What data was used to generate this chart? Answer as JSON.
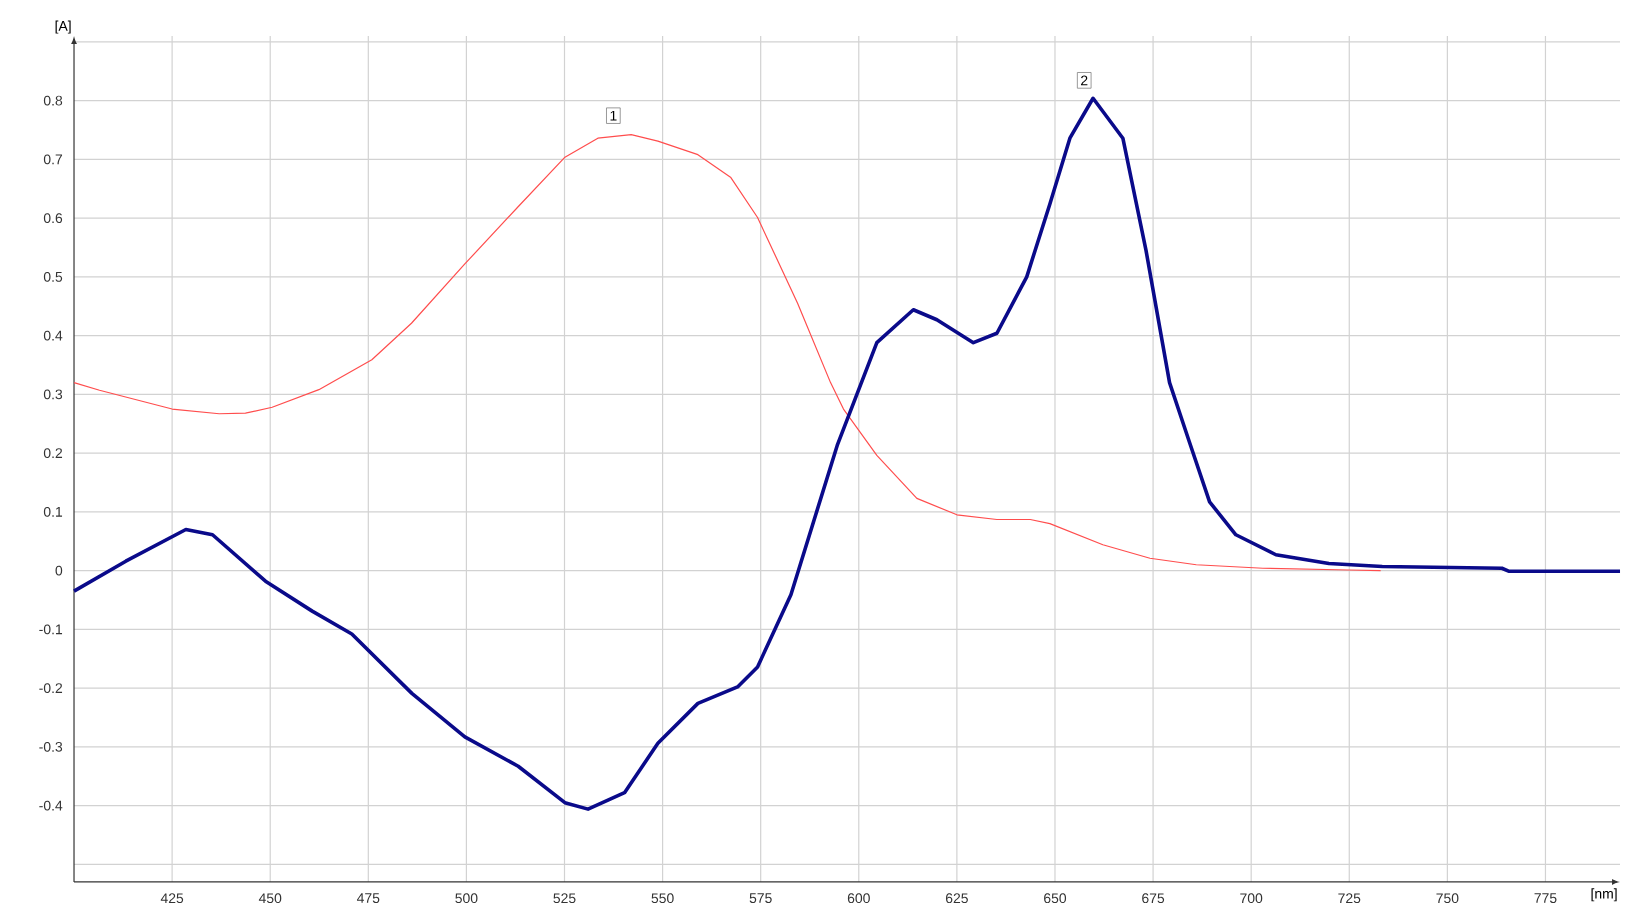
{
  "chart_data": {
    "type": "line",
    "xlabel": "[nm]",
    "ylabel": "[A]",
    "xlim": [
      400,
      794
    ],
    "ylim": [
      -0.53,
      0.91
    ],
    "xticks": [
      425,
      450,
      475,
      500,
      525,
      550,
      575,
      600,
      625,
      650,
      675,
      700,
      725,
      750,
      775
    ],
    "yticks": [
      {
        "value": -0.5,
        "label": null
      },
      -0.4,
      -0.3,
      -0.2,
      -0.1,
      0,
      0.1,
      0.2,
      0.3,
      0.4,
      0.5,
      0.6,
      0.7,
      0.8,
      {
        "value": 0.9,
        "label": null
      }
    ],
    "grid": true,
    "marker": "none",
    "line_style": "solid",
    "annotations": [
      {
        "text": "1",
        "x": 540,
        "y": 0.74
      },
      {
        "text": "2",
        "x": 660,
        "y": 0.8
      }
    ],
    "series": [
      {
        "color": "#ff4d4d",
        "x": [
          400,
          406.5,
          425,
          437,
          443.7,
          450.5,
          462.4,
          475.9,
          486,
          499.6,
          513,
          525,
          533.5,
          542,
          548.8,
          559,
          567.4,
          574.2,
          584.4,
          592.8,
          596.1,
          604.6,
          614.8,
          625,
          635.2,
          643.7,
          648.7,
          662.2,
          674.2,
          686,
          703,
          725,
          733
        ],
        "values": [
          0.32,
          0.307,
          0.275,
          0.267,
          0.268,
          0.278,
          0.308,
          0.359,
          0.421,
          0.522,
          0.618,
          0.703,
          0.736,
          0.742,
          0.731,
          0.708,
          0.669,
          0.601,
          0.455,
          0.32,
          0.275,
          0.196,
          0.123,
          0.095,
          0.087,
          0.087,
          0.08,
          0.044,
          0.021,
          0.01,
          0.004,
          0.001,
          0
        ]
      },
      {
        "color": "#0a0a8a",
        "x": [
          400,
          413.2,
          428.5,
          435.3,
          448.8,
          460.7,
          470.8,
          486.1,
          499.6,
          513.2,
          525.1,
          531,
          540.3,
          548.8,
          559,
          569.1,
          574.2,
          582.7,
          594.5,
          604.6,
          613.9,
          619.9,
          629.2,
          635.2,
          642.8,
          648.7,
          653.8,
          659.7,
          667.3,
          673.2,
          679.2,
          684.3,
          689.4,
          696.1,
          706.3,
          719.8,
          733.4,
          763.9,
          765.6,
          794
        ],
        "values": [
          -0.035,
          0.016,
          0.07,
          0.061,
          -0.018,
          -0.069,
          -0.108,
          -0.209,
          -0.283,
          -0.333,
          -0.395,
          -0.406,
          -0.378,
          -0.294,
          -0.226,
          -0.198,
          -0.164,
          -0.041,
          0.213,
          0.388,
          0.444,
          0.427,
          0.388,
          0.404,
          0.5,
          0.624,
          0.736,
          0.804,
          0.736,
          0.545,
          0.32,
          0.218,
          0.117,
          0.061,
          0.027,
          0.012,
          0.007,
          0.004,
          -0.001,
          -0.001
        ]
      }
    ]
  }
}
